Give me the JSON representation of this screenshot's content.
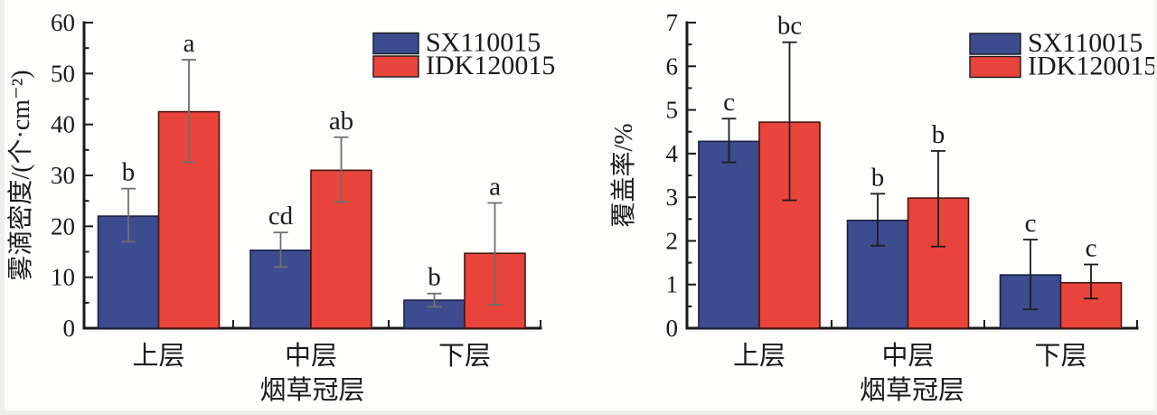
{
  "figure": {
    "description": "Two grouped bar charts comparing two nozzle types across tobacco canopy layers",
    "colors": {
      "series_blue_fill": "#3D4B8F",
      "series_blue_stroke": "#1C2145",
      "series_red_fill": "#E8443B",
      "series_red_stroke": "#471511",
      "axis": "#1A1A1A",
      "errorbar_left_chart": "#6F6F6F",
      "errorbar_right_chart": "#1C1C1C"
    },
    "legend": {
      "entries": [
        "SX110015",
        "IDK120015"
      ]
    }
  },
  "chart_data": [
    {
      "type": "bar",
      "title": "",
      "xlabel": "烟草冠层",
      "ylabel": "雾滴密度/(个·cm⁻²)",
      "ylim": [
        0,
        60
      ],
      "ytick_step": 10,
      "yminor_step": 5,
      "grid": false,
      "legend_position": "top-right-inside",
      "categories": [
        "上层",
        "中层",
        "下层"
      ],
      "series": [
        {
          "name": "SX110015",
          "color": "#3D4B8F",
          "values": [
            22.0,
            15.3,
            5.5
          ],
          "err_low": [
            17.0,
            12.0,
            4.2
          ],
          "err_high": [
            27.4,
            18.8,
            6.8
          ],
          "sig_letters": [
            "b",
            "cd",
            "b"
          ]
        },
        {
          "name": "IDK120015",
          "color": "#E8443B",
          "values": [
            42.5,
            31.0,
            14.7
          ],
          "err_low": [
            32.6,
            24.8,
            4.6
          ],
          "err_high": [
            52.7,
            37.5,
            24.6
          ],
          "sig_letters": [
            "a",
            "ab",
            "a"
          ]
        }
      ]
    },
    {
      "type": "bar",
      "title": "",
      "xlabel": "烟草冠层",
      "ylabel": "覆盖率/%",
      "ylim": [
        0,
        7
      ],
      "ytick_step": 1,
      "yminor_step": 0.5,
      "grid": false,
      "legend_position": "top-right-inside",
      "categories": [
        "上层",
        "中层",
        "下层"
      ],
      "series": [
        {
          "name": "SX110015",
          "color": "#3D4B8F",
          "values": [
            4.28,
            2.47,
            1.22
          ],
          "err_low": [
            3.8,
            1.89,
            0.43
          ],
          "err_high": [
            4.8,
            3.08,
            2.03
          ],
          "sig_letters": [
            "c",
            "b",
            "c"
          ]
        },
        {
          "name": "IDK120015",
          "color": "#E8443B",
          "values": [
            4.72,
            2.98,
            1.04
          ],
          "err_low": [
            2.93,
            1.87,
            0.68
          ],
          "err_high": [
            6.55,
            4.06,
            1.46
          ],
          "sig_letters": [
            "bc",
            "b",
            "c"
          ]
        }
      ]
    }
  ]
}
